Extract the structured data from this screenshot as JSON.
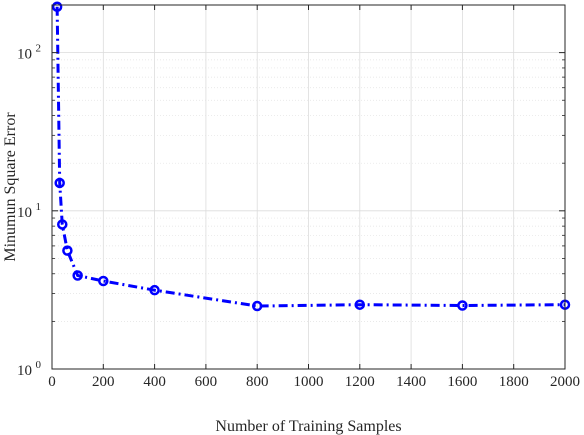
{
  "chart_data": {
    "type": "line",
    "title": "",
    "xlabel": "Number of Training Samples",
    "ylabel": "Minumun Square Error",
    "x_scale": "linear",
    "y_scale": "log",
    "xlim": [
      0,
      2000
    ],
    "ylim": [
      1,
      200
    ],
    "x_ticks": [
      0,
      200,
      400,
      600,
      800,
      1000,
      1200,
      1400,
      1600,
      1800,
      2000
    ],
    "y_ticks": [
      {
        "value": 1,
        "base": "10",
        "exp": "0"
      },
      {
        "value": 10,
        "base": "10",
        "exp": "1"
      },
      {
        "value": 100,
        "base": "10",
        "exp": "2"
      }
    ],
    "grid": true,
    "series": [
      {
        "line_style": "dash-dot",
        "marker": "circle",
        "color": "#0000ff",
        "x": [
          20,
          30,
          40,
          60,
          100,
          200,
          400,
          800,
          1200,
          1600,
          2000
        ],
        "y": [
          195,
          15,
          8.2,
          5.6,
          3.9,
          3.6,
          3.15,
          2.5,
          2.55,
          2.52,
          2.55
        ]
      }
    ]
  }
}
